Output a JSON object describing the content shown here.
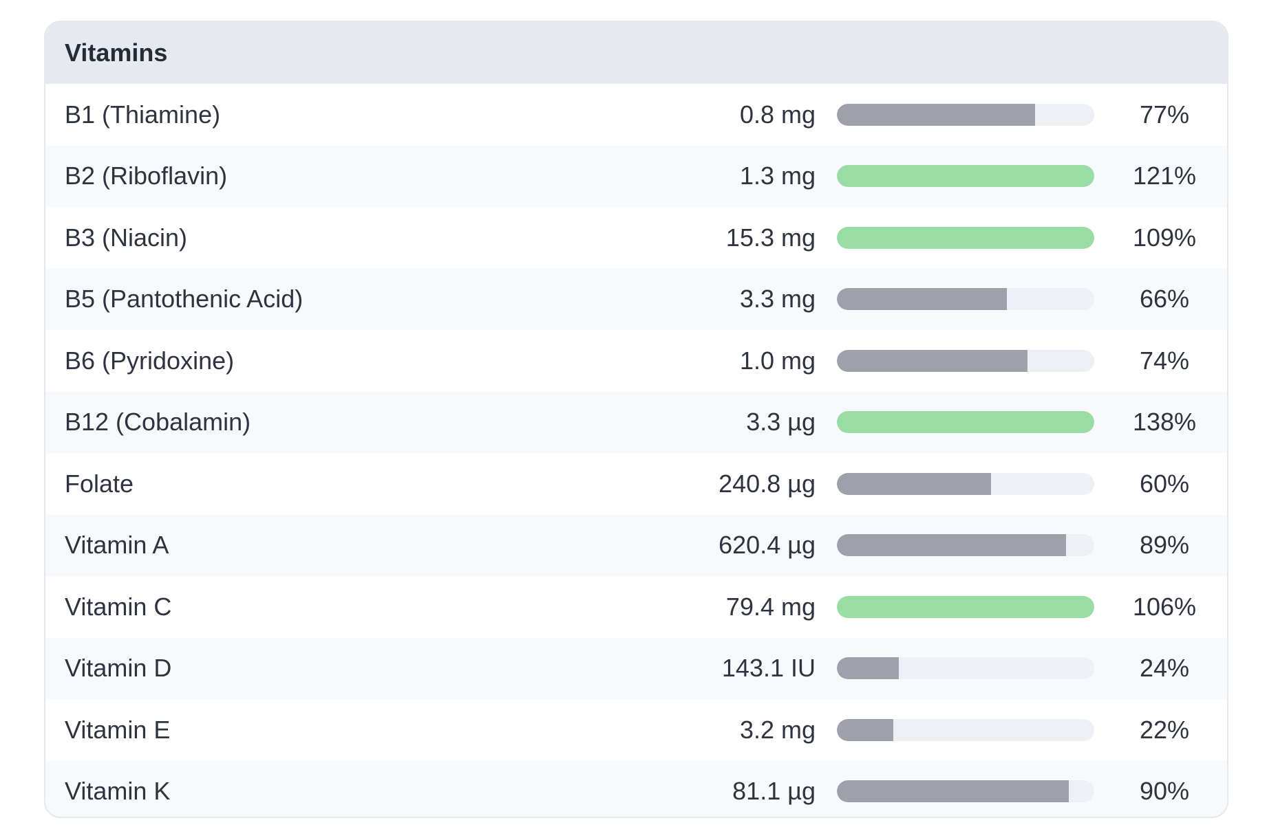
{
  "panel": {
    "title": "Vitamins"
  },
  "colors": {
    "header_bg": "#e6e9f0",
    "bar_track": "#eef0f5",
    "bar_partial": "#9fa1aa",
    "bar_full": "#99dda4"
  },
  "rows": [
    {
      "name": "B1 (Thiamine)",
      "amount": "0.8 mg",
      "percent_label": "77%",
      "percent": 77
    },
    {
      "name": "B2 (Riboflavin)",
      "amount": "1.3 mg",
      "percent_label": "121%",
      "percent": 121
    },
    {
      "name": "B3 (Niacin)",
      "amount": "15.3 mg",
      "percent_label": "109%",
      "percent": 109
    },
    {
      "name": "B5 (Pantothenic Acid)",
      "amount": "3.3 mg",
      "percent_label": "66%",
      "percent": 66
    },
    {
      "name": "B6 (Pyridoxine)",
      "amount": "1.0 mg",
      "percent_label": "74%",
      "percent": 74
    },
    {
      "name": "B12 (Cobalamin)",
      "amount": "3.3 µg",
      "percent_label": "138%",
      "percent": 138
    },
    {
      "name": "Folate",
      "amount": "240.8 µg",
      "percent_label": "60%",
      "percent": 60
    },
    {
      "name": "Vitamin A",
      "amount": "620.4 µg",
      "percent_label": "89%",
      "percent": 89
    },
    {
      "name": "Vitamin C",
      "amount": "79.4 mg",
      "percent_label": "106%",
      "percent": 106
    },
    {
      "name": "Vitamin D",
      "amount": "143.1 IU",
      "percent_label": "24%",
      "percent": 24
    },
    {
      "name": "Vitamin E",
      "amount": "3.2 mg",
      "percent_label": "22%",
      "percent": 22
    },
    {
      "name": "Vitamin K",
      "amount": "81.1 µg",
      "percent_label": "90%",
      "percent": 90
    }
  ]
}
